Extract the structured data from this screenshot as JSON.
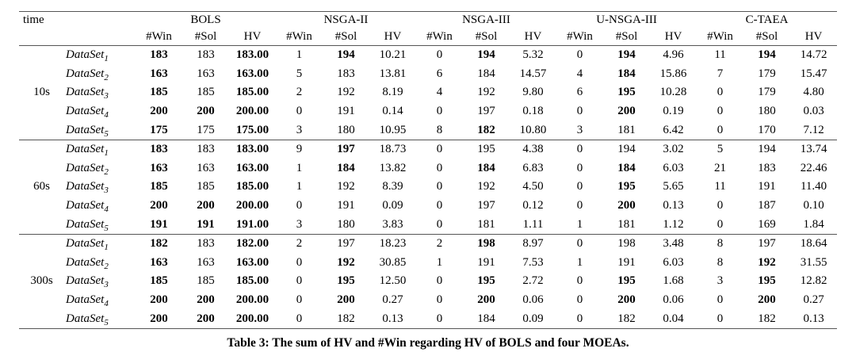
{
  "table": {
    "caption": "Table 3: The sum of HV and #Win regarding HV of BOLS and four MOEAs.",
    "columns": {
      "time_label": "time",
      "algorithms": [
        "BOLS",
        "NSGA-II",
        "NSGA-III",
        "U-NSGA-III",
        "C-TAEA"
      ],
      "metrics": [
        "#Win",
        "#Sol",
        "HV"
      ]
    },
    "groups": [
      {
        "time": "10s",
        "rows": [
          {
            "dataset": "DataSet",
            "sub": "1",
            "values": [
              [
                "183",
                1
              ],
              [
                "183",
                0
              ],
              [
                "183.00",
                1
              ],
              [
                "1",
                0
              ],
              [
                "194",
                1
              ],
              [
                "10.21",
                0
              ],
              [
                "0",
                0
              ],
              [
                "194",
                1
              ],
              [
                "5.32",
                0
              ],
              [
                "0",
                0
              ],
              [
                "194",
                1
              ],
              [
                "4.96",
                0
              ],
              [
                "11",
                0
              ],
              [
                "194",
                1
              ],
              [
                "14.72",
                0
              ]
            ]
          },
          {
            "dataset": "DataSet",
            "sub": "2",
            "values": [
              [
                "163",
                1
              ],
              [
                "163",
                0
              ],
              [
                "163.00",
                1
              ],
              [
                "5",
                0
              ],
              [
                "183",
                0
              ],
              [
                "13.81",
                0
              ],
              [
                "6",
                0
              ],
              [
                "184",
                0
              ],
              [
                "14.57",
                0
              ],
              [
                "4",
                0
              ],
              [
                "184",
                1
              ],
              [
                "15.86",
                0
              ],
              [
                "7",
                0
              ],
              [
                "179",
                0
              ],
              [
                "15.47",
                0
              ]
            ]
          },
          {
            "dataset": "DataSet",
            "sub": "3",
            "values": [
              [
                "185",
                1
              ],
              [
                "185",
                0
              ],
              [
                "185.00",
                1
              ],
              [
                "2",
                0
              ],
              [
                "192",
                0
              ],
              [
                "8.19",
                0
              ],
              [
                "4",
                0
              ],
              [
                "192",
                0
              ],
              [
                "9.80",
                0
              ],
              [
                "6",
                0
              ],
              [
                "195",
                1
              ],
              [
                "10.28",
                0
              ],
              [
                "0",
                0
              ],
              [
                "179",
                0
              ],
              [
                "4.80",
                0
              ]
            ]
          },
          {
            "dataset": "DataSet",
            "sub": "4",
            "values": [
              [
                "200",
                1
              ],
              [
                "200",
                1
              ],
              [
                "200.00",
                1
              ],
              [
                "0",
                0
              ],
              [
                "191",
                0
              ],
              [
                "0.14",
                0
              ],
              [
                "0",
                0
              ],
              [
                "197",
                0
              ],
              [
                "0.18",
                0
              ],
              [
                "0",
                0
              ],
              [
                "200",
                1
              ],
              [
                "0.19",
                0
              ],
              [
                "0",
                0
              ],
              [
                "180",
                0
              ],
              [
                "0.03",
                0
              ]
            ]
          },
          {
            "dataset": "DataSet",
            "sub": "5",
            "values": [
              [
                "175",
                1
              ],
              [
                "175",
                0
              ],
              [
                "175.00",
                1
              ],
              [
                "3",
                0
              ],
              [
                "180",
                0
              ],
              [
                "10.95",
                0
              ],
              [
                "8",
                0
              ],
              [
                "182",
                1
              ],
              [
                "10.80",
                0
              ],
              [
                "3",
                0
              ],
              [
                "181",
                0
              ],
              [
                "6.42",
                0
              ],
              [
                "0",
                0
              ],
              [
                "170",
                0
              ],
              [
                "7.12",
                0
              ]
            ]
          }
        ]
      },
      {
        "time": "60s",
        "rows": [
          {
            "dataset": "DataSet",
            "sub": "1",
            "values": [
              [
                "183",
                1
              ],
              [
                "183",
                0
              ],
              [
                "183.00",
                1
              ],
              [
                "9",
                0
              ],
              [
                "197",
                1
              ],
              [
                "18.73",
                0
              ],
              [
                "0",
                0
              ],
              [
                "195",
                0
              ],
              [
                "4.38",
                0
              ],
              [
                "0",
                0
              ],
              [
                "194",
                0
              ],
              [
                "3.02",
                0
              ],
              [
                "5",
                0
              ],
              [
                "194",
                0
              ],
              [
                "13.74",
                0
              ]
            ]
          },
          {
            "dataset": "DataSet",
            "sub": "2",
            "values": [
              [
                "163",
                1
              ],
              [
                "163",
                0
              ],
              [
                "163.00",
                1
              ],
              [
                "1",
                0
              ],
              [
                "184",
                1
              ],
              [
                "13.82",
                0
              ],
              [
                "0",
                0
              ],
              [
                "184",
                1
              ],
              [
                "6.83",
                0
              ],
              [
                "0",
                0
              ],
              [
                "184",
                1
              ],
              [
                "6.03",
                0
              ],
              [
                "21",
                0
              ],
              [
                "183",
                0
              ],
              [
                "22.46",
                0
              ]
            ]
          },
          {
            "dataset": "DataSet",
            "sub": "3",
            "values": [
              [
                "185",
                1
              ],
              [
                "185",
                0
              ],
              [
                "185.00",
                1
              ],
              [
                "1",
                0
              ],
              [
                "192",
                0
              ],
              [
                "8.39",
                0
              ],
              [
                "0",
                0
              ],
              [
                "192",
                0
              ],
              [
                "4.50",
                0
              ],
              [
                "0",
                0
              ],
              [
                "195",
                1
              ],
              [
                "5.65",
                0
              ],
              [
                "11",
                0
              ],
              [
                "191",
                0
              ],
              [
                "11.40",
                0
              ]
            ]
          },
          {
            "dataset": "DataSet",
            "sub": "4",
            "values": [
              [
                "200",
                1
              ],
              [
                "200",
                1
              ],
              [
                "200.00",
                1
              ],
              [
                "0",
                0
              ],
              [
                "191",
                0
              ],
              [
                "0.09",
                0
              ],
              [
                "0",
                0
              ],
              [
                "197",
                0
              ],
              [
                "0.12",
                0
              ],
              [
                "0",
                0
              ],
              [
                "200",
                1
              ],
              [
                "0.13",
                0
              ],
              [
                "0",
                0
              ],
              [
                "187",
                0
              ],
              [
                "0.10",
                0
              ]
            ]
          },
          {
            "dataset": "DataSet",
            "sub": "5",
            "values": [
              [
                "191",
                1
              ],
              [
                "191",
                1
              ],
              [
                "191.00",
                1
              ],
              [
                "3",
                0
              ],
              [
                "180",
                0
              ],
              [
                "3.83",
                0
              ],
              [
                "0",
                0
              ],
              [
                "181",
                0
              ],
              [
                "1.11",
                0
              ],
              [
                "1",
                0
              ],
              [
                "181",
                0
              ],
              [
                "1.12",
                0
              ],
              [
                "0",
                0
              ],
              [
                "169",
                0
              ],
              [
                "1.84",
                0
              ]
            ]
          }
        ]
      },
      {
        "time": "300s",
        "rows": [
          {
            "dataset": "DataSet",
            "sub": "1",
            "values": [
              [
                "182",
                1
              ],
              [
                "183",
                0
              ],
              [
                "182.00",
                1
              ],
              [
                "2",
                0
              ],
              [
                "197",
                0
              ],
              [
                "18.23",
                0
              ],
              [
                "2",
                0
              ],
              [
                "198",
                1
              ],
              [
                "8.97",
                0
              ],
              [
                "0",
                0
              ],
              [
                "198",
                0
              ],
              [
                "3.48",
                0
              ],
              [
                "8",
                0
              ],
              [
                "197",
                0
              ],
              [
                "18.64",
                0
              ]
            ]
          },
          {
            "dataset": "DataSet",
            "sub": "2",
            "values": [
              [
                "163",
                1
              ],
              [
                "163",
                0
              ],
              [
                "163.00",
                1
              ],
              [
                "0",
                0
              ],
              [
                "192",
                1
              ],
              [
                "30.85",
                0
              ],
              [
                "1",
                0
              ],
              [
                "191",
                0
              ],
              [
                "7.53",
                0
              ],
              [
                "1",
                0
              ],
              [
                "191",
                0
              ],
              [
                "6.03",
                0
              ],
              [
                "8",
                0
              ],
              [
                "192",
                1
              ],
              [
                "31.55",
                0
              ]
            ]
          },
          {
            "dataset": "DataSet",
            "sub": "3",
            "values": [
              [
                "185",
                1
              ],
              [
                "185",
                0
              ],
              [
                "185.00",
                1
              ],
              [
                "0",
                0
              ],
              [
                "195",
                1
              ],
              [
                "12.50",
                0
              ],
              [
                "0",
                0
              ],
              [
                "195",
                1
              ],
              [
                "2.72",
                0
              ],
              [
                "0",
                0
              ],
              [
                "195",
                1
              ],
              [
                "1.68",
                0
              ],
              [
                "3",
                0
              ],
              [
                "195",
                1
              ],
              [
                "12.82",
                0
              ]
            ]
          },
          {
            "dataset": "DataSet",
            "sub": "4",
            "values": [
              [
                "200",
                1
              ],
              [
                "200",
                1
              ],
              [
                "200.00",
                1
              ],
              [
                "0",
                0
              ],
              [
                "200",
                1
              ],
              [
                "0.27",
                0
              ],
              [
                "0",
                0
              ],
              [
                "200",
                1
              ],
              [
                "0.06",
                0
              ],
              [
                "0",
                0
              ],
              [
                "200",
                1
              ],
              [
                "0.06",
                0
              ],
              [
                "0",
                0
              ],
              [
                "200",
                1
              ],
              [
                "0.27",
                0
              ]
            ]
          },
          {
            "dataset": "DataSet",
            "sub": "5",
            "values": [
              [
                "200",
                1
              ],
              [
                "200",
                1
              ],
              [
                "200.00",
                1
              ],
              [
                "0",
                0
              ],
              [
                "182",
                0
              ],
              [
                "0.13",
                0
              ],
              [
                "0",
                0
              ],
              [
                "184",
                0
              ],
              [
                "0.09",
                0
              ],
              [
                "0",
                0
              ],
              [
                "182",
                0
              ],
              [
                "0.04",
                0
              ],
              [
                "0",
                0
              ],
              [
                "182",
                0
              ],
              [
                "0.13",
                0
              ]
            ]
          }
        ]
      }
    ]
  }
}
